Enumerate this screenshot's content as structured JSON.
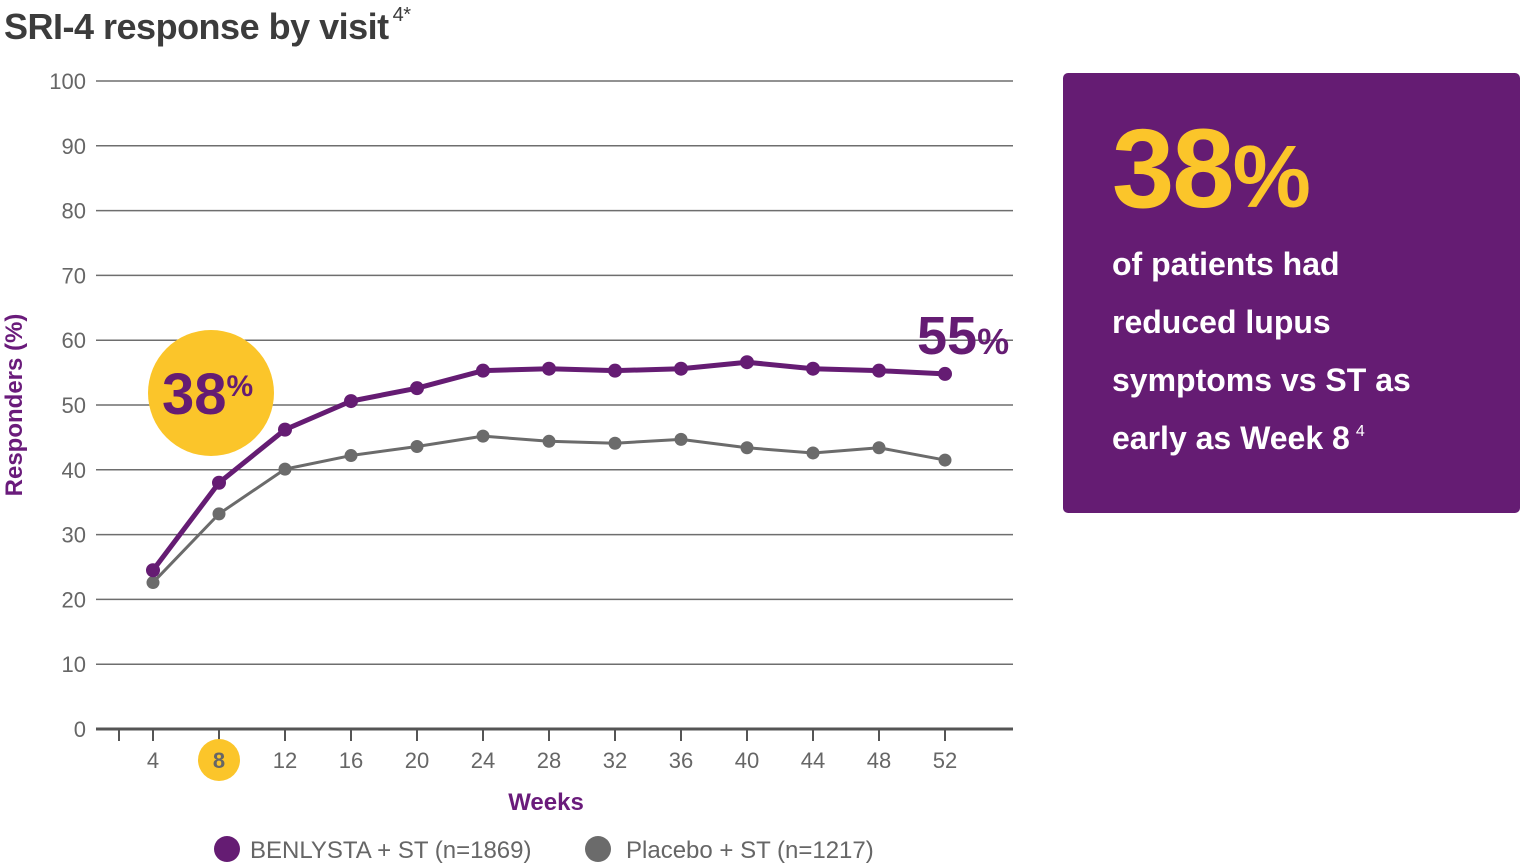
{
  "title": "SRI-4 response by visit",
  "title_sup": "4*",
  "chart_data": {
    "type": "line",
    "title": "SRI-4 response by visit",
    "xlabel": "Weeks",
    "ylabel": "Responders (%)",
    "x": [
      4,
      8,
      12,
      16,
      20,
      24,
      28,
      32,
      36,
      40,
      44,
      48,
      52
    ],
    "ylim": [
      0,
      100
    ],
    "yticks": [
      0,
      10,
      20,
      30,
      40,
      50,
      60,
      70,
      80,
      90,
      100
    ],
    "grid": true,
    "highlighted_x": 8,
    "series": [
      {
        "name": "BENLYSTA + ST (n=1869)",
        "color": "#651c73",
        "values": [
          24.5,
          38,
          46.2,
          50.6,
          52.6,
          55.3,
          55.6,
          55.3,
          55.6,
          56.6,
          55.6,
          55.3,
          54.8
        ]
      },
      {
        "name": "Placebo + ST (n=1217)",
        "color": "#6b6b6b",
        "values": [
          22.6,
          33.2,
          40.1,
          42.2,
          43.6,
          45.2,
          44.4,
          44.1,
          44.7,
          43.4,
          42.6,
          43.4,
          41.5
        ]
      }
    ],
    "annotations": [
      {
        "label": "38",
        "suffix": "%",
        "x": 8
      },
      {
        "label": "55",
        "suffix": "%",
        "x": 52
      }
    ],
    "legend_position": "bottom"
  },
  "info_box": {
    "stat": "38",
    "stat_suffix": "%",
    "lines": [
      "of patients had",
      "reduced lupus",
      "symptoms vs ST as",
      "early as Week 8"
    ],
    "line_sup": "4"
  },
  "colors": {
    "purple": "#651c73",
    "gray": "#6b6b6b",
    "yellow": "#fbc52a",
    "grid": "#666666"
  }
}
